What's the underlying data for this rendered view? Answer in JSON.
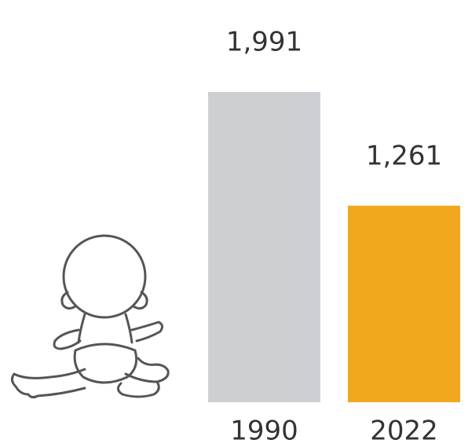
{
  "chart_data": {
    "type": "bar",
    "categories": [
      "1990",
      "2022"
    ],
    "values": [
      1991,
      1261
    ],
    "value_labels": [
      "1,991",
      "1,261"
    ],
    "colors": [
      "#cdd0d3",
      "#f2a81d"
    ]
  }
}
